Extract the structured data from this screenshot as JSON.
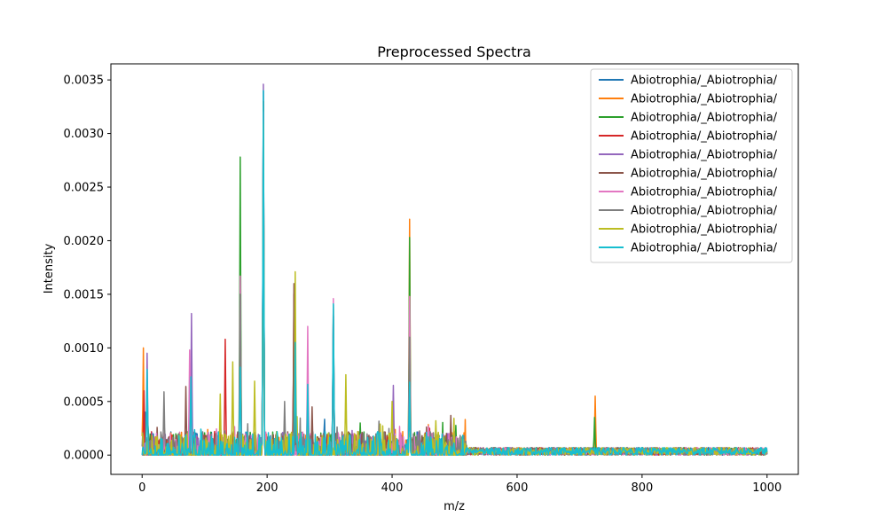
{
  "chart_data": {
    "type": "line",
    "title": "Preprocessed Spectra",
    "xlabel": "m/z",
    "ylabel": "Intensity",
    "xlim": [
      -50,
      1050
    ],
    "ylim": [
      -0.00018,
      0.00365
    ],
    "xticks": [
      0,
      200,
      400,
      600,
      800,
      1000
    ],
    "yticks": [
      0.0,
      0.0005,
      0.001,
      0.0015,
      0.002,
      0.0025,
      0.003,
      0.0035
    ],
    "ytick_labels": [
      "0.0000",
      "0.0005",
      "0.0010",
      "0.0015",
      "0.0020",
      "0.0025",
      "0.0030",
      "0.0035"
    ],
    "grid": false,
    "legend_position": "top-right",
    "x_range": [
      0,
      1000
    ],
    "series": [
      {
        "name": "Abiotrophia/_Abiotrophia/",
        "color": "#1f77b4",
        "peaks": [
          [
            5,
            0.0004
          ],
          [
            78,
            0.0007
          ],
          [
            194,
            0.0034
          ],
          [
            245,
            0.0009
          ],
          [
            306,
            0.0013
          ],
          [
            428,
            0.0006
          ]
        ]
      },
      {
        "name": "Abiotrophia/_Abiotrophia/",
        "color": "#ff7f0e",
        "peaks": [
          [
            2,
            0.001
          ],
          [
            78,
            0.0006
          ],
          [
            194,
            0.0031
          ],
          [
            245,
            0.0008
          ],
          [
            306,
            0.0012
          ],
          [
            428,
            0.0022
          ],
          [
            725,
            0.00055
          ]
        ]
      },
      {
        "name": "Abiotrophia/_Abiotrophia/",
        "color": "#2ca02c",
        "peaks": [
          [
            8,
            0.0007
          ],
          [
            157,
            0.00278
          ],
          [
            194,
            0.0033
          ],
          [
            245,
            0.001
          ],
          [
            306,
            0.0014
          ],
          [
            349,
            0.0003
          ],
          [
            428,
            0.00203
          ],
          [
            724,
            0.00035
          ]
        ]
      },
      {
        "name": "Abiotrophia/_Abiotrophia/",
        "color": "#d62728",
        "peaks": [
          [
            3,
            0.0006
          ],
          [
            133,
            0.00108
          ],
          [
            194,
            0.003
          ],
          [
            243,
            0.0015
          ],
          [
            306,
            0.0012
          ],
          [
            428,
            0.0009
          ],
          [
            460,
            0.00025
          ]
        ]
      },
      {
        "name": "Abiotrophia/_Abiotrophia/",
        "color": "#9467bd",
        "peaks": [
          [
            8,
            0.00095
          ],
          [
            79,
            0.00132
          ],
          [
            194,
            0.00346
          ],
          [
            245,
            0.0009
          ],
          [
            306,
            0.0013
          ],
          [
            402,
            0.00065
          ],
          [
            428,
            0.0007
          ]
        ]
      },
      {
        "name": "Abiotrophia/_Abiotrophia/",
        "color": "#8c564b",
        "peaks": [
          [
            70,
            0.00064
          ],
          [
            157,
            0.00155
          ],
          [
            194,
            0.0033
          ],
          [
            243,
            0.0016
          ],
          [
            272,
            0.00045
          ],
          [
            306,
            0.0012
          ],
          [
            428,
            0.00115
          ],
          [
            494,
            0.00037
          ]
        ]
      },
      {
        "name": "Abiotrophia/_Abiotrophia/",
        "color": "#e377c2",
        "peaks": [
          [
            76,
            0.00098
          ],
          [
            157,
            0.00167
          ],
          [
            194,
            0.0032
          ],
          [
            265,
            0.0012
          ],
          [
            306,
            0.00146
          ],
          [
            428,
            0.00148
          ]
        ]
      },
      {
        "name": "Abiotrophia/_Abiotrophia/",
        "color": "#7f7f7f",
        "peaks": [
          [
            35,
            0.00059
          ],
          [
            157,
            0.0015
          ],
          [
            194,
            0.003
          ],
          [
            228,
            0.0005
          ],
          [
            245,
            0.0011
          ],
          [
            306,
            0.0013
          ],
          [
            428,
            0.0011
          ]
        ]
      },
      {
        "name": "Abiotrophia/_Abiotrophia/",
        "color": "#bcbd22",
        "peaks": [
          [
            125,
            0.00057
          ],
          [
            145,
            0.00087
          ],
          [
            180,
            0.00069
          ],
          [
            194,
            0.0031
          ],
          [
            245,
            0.00171
          ],
          [
            326,
            0.00075
          ],
          [
            400,
            0.0005
          ],
          [
            470,
            0.00032
          ]
        ]
      },
      {
        "name": "Abiotrophia/_Abiotrophia/",
        "color": "#17becf",
        "peaks": [
          [
            8,
            0.0008
          ],
          [
            78,
            0.00073
          ],
          [
            157,
            0.00082
          ],
          [
            194,
            0.0034
          ],
          [
            245,
            0.00105
          ],
          [
            265,
            0.00066
          ],
          [
            306,
            0.00141
          ],
          [
            428,
            0.00068
          ]
        ]
      }
    ]
  }
}
